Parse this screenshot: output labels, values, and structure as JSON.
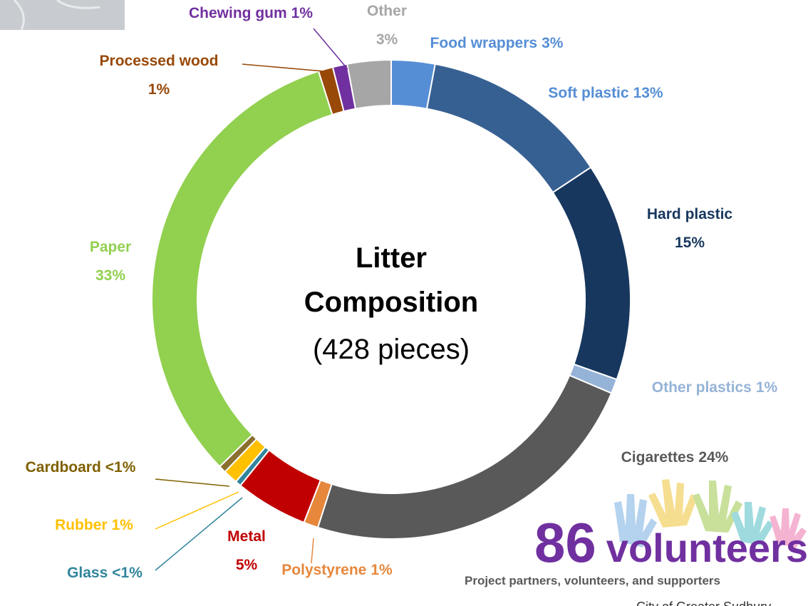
{
  "chart_data": {
    "type": "donut",
    "title": "Litter Composition",
    "subtitle": "(428 pieces)",
    "categories": [
      "Food wrappers",
      "Soft plastic",
      "Hard plastic",
      "Other plastics",
      "Cigarettes",
      "Polystyrene",
      "Metal",
      "Glass",
      "Rubber",
      "Cardboard",
      "Paper",
      "Processed wood",
      "Chewing gum",
      "Other"
    ],
    "values": [
      3,
      13,
      15,
      1,
      24,
      1,
      5,
      0.4,
      1,
      0.5,
      33,
      1,
      1,
      3
    ],
    "value_labels": [
      "3%",
      "13%",
      "15%",
      "1%",
      "24%",
      "1%",
      "5%",
      "<1%",
      "1%",
      "<1%",
      "33%",
      "1%",
      "1%",
      "3%"
    ],
    "colors": [
      "#558ed5",
      "#376092",
      "#17375e",
      "#95b3d7",
      "#595959",
      "#e6873c",
      "#c00000",
      "#31859c",
      "#ffc000",
      "#8b6f2f",
      "#92d050",
      "#984807",
      "#7030a0",
      "#a6a6a6"
    ],
    "label_colors": [
      "#558ed5",
      "#558ed5",
      "#17375e",
      "#95b3d7",
      "#595959",
      "#e6873c",
      "#c00000",
      "#31859c",
      "#ffc000",
      "#7f6000",
      "#92d050",
      "#984807",
      "#7030a0",
      "#a6a6a6"
    ]
  },
  "volunteers": {
    "count": 86,
    "label": "volunteers",
    "caption": "Project partners, volunteers, and supporters",
    "credit": "City of Greater Sudbury"
  }
}
